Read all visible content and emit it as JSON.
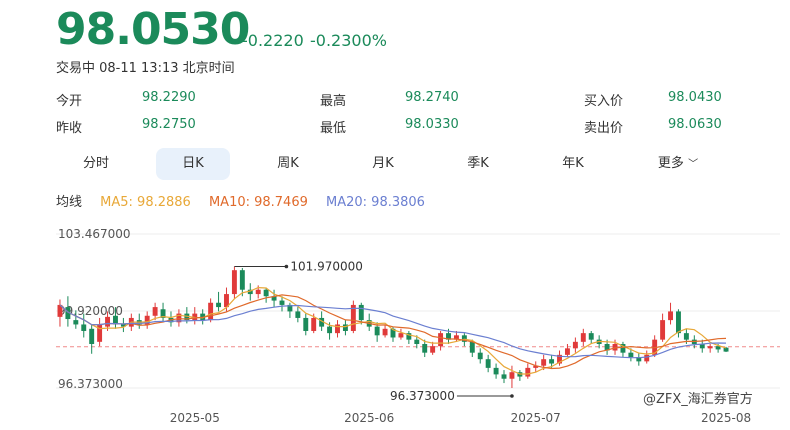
{
  "quote": {
    "price": "98.0530",
    "change": "-0.2220",
    "change_pct": "-0.2300%",
    "status": "交易中 08-11 13:13 北京时间",
    "color_down": "#1b8a5a",
    "color_up": "#e03a3a"
  },
  "stats": [
    {
      "label": "今开",
      "value": "98.2290"
    },
    {
      "label": "最高",
      "value": "98.2740"
    },
    {
      "label": "买入价",
      "value": "98.0430"
    },
    {
      "label": "昨收",
      "value": "98.2750"
    },
    {
      "label": "最低",
      "value": "98.0330"
    },
    {
      "label": "卖出价",
      "value": "98.0630"
    }
  ],
  "tabs": [
    "分时",
    "日K",
    "周K",
    "月K",
    "季K",
    "年K",
    "更多"
  ],
  "active_tab": "日K",
  "ma": {
    "label": "均线",
    "ma5": "MA5: 98.2886",
    "ma10": "MA10: 98.7469",
    "ma20": "MA20: 98.3806",
    "color_ma5": "#e8a838",
    "color_ma10": "#e06a2b",
    "color_ma20": "#6b7fd1"
  },
  "watermark": "@ZFX_海汇券官方",
  "chart_data": {
    "type": "candlestick",
    "y_labels": [
      "103.467000",
      "99.920000",
      "96.373000"
    ],
    "ylim": [
      96.373,
      103.467
    ],
    "x_labels": [
      "2025-05",
      "2025-06",
      "2025-07",
      "2025-08"
    ],
    "x_label_index": [
      17,
      39,
      60,
      84
    ],
    "high_annotation": {
      "index": 22,
      "label": "101.970000",
      "value": 101.97
    },
    "low_annotation": {
      "index": 57,
      "label": "96.373000",
      "value": 96.373
    },
    "reference_price": 98.275,
    "candles": [
      [
        99.65,
        100.2,
        100.45,
        99.2
      ],
      [
        100.1,
        99.55,
        100.6,
        99.2
      ],
      [
        99.5,
        99.3,
        99.95,
        99.1
      ],
      [
        99.3,
        99.0,
        99.8,
        98.7
      ],
      [
        99.1,
        98.4,
        99.3,
        97.95
      ],
      [
        98.5,
        99.3,
        99.6,
        98.3
      ],
      [
        99.2,
        99.65,
        99.9,
        99.0
      ],
      [
        99.7,
        99.3,
        100.1,
        99.1
      ],
      [
        99.3,
        99.2,
        99.6,
        98.95
      ],
      [
        99.2,
        99.6,
        99.8,
        99.0
      ],
      [
        99.5,
        99.3,
        99.8,
        99.1
      ],
      [
        99.3,
        99.7,
        99.9,
        99.1
      ],
      [
        99.7,
        100.1,
        100.3,
        99.5
      ],
      [
        100.0,
        99.6,
        100.3,
        99.4
      ],
      [
        99.6,
        99.4,
        99.9,
        99.2
      ],
      [
        99.4,
        99.8,
        100.0,
        99.2
      ],
      [
        99.8,
        99.5,
        100.1,
        99.35
      ],
      [
        99.5,
        99.8,
        100.1,
        99.3
      ],
      [
        99.8,
        99.5,
        100.0,
        99.3
      ],
      [
        99.5,
        100.3,
        100.5,
        99.4
      ],
      [
        100.3,
        100.1,
        100.8,
        99.9
      ],
      [
        100.1,
        100.7,
        101.0,
        99.9
      ],
      [
        100.7,
        101.8,
        101.97,
        100.5
      ],
      [
        101.8,
        100.9,
        101.9,
        100.6
      ],
      [
        100.9,
        100.7,
        101.2,
        100.4
      ],
      [
        100.7,
        100.9,
        101.1,
        100.5
      ],
      [
        100.9,
        100.6,
        101.0,
        100.3
      ],
      [
        100.6,
        100.4,
        100.9,
        100.1
      ],
      [
        100.4,
        100.2,
        100.6,
        99.9
      ],
      [
        100.2,
        99.9,
        100.3,
        99.6
      ],
      [
        99.9,
        99.6,
        100.1,
        99.4
      ],
      [
        99.6,
        99.0,
        99.8,
        98.8
      ],
      [
        99.0,
        99.6,
        99.8,
        98.9
      ],
      [
        99.6,
        99.2,
        99.9,
        99.0
      ],
      [
        99.2,
        98.9,
        99.4,
        98.6
      ],
      [
        98.9,
        99.3,
        99.5,
        98.7
      ],
      [
        99.3,
        99.0,
        99.5,
        98.8
      ],
      [
        99.0,
        100.2,
        100.4,
        98.9
      ],
      [
        100.2,
        99.5,
        100.3,
        99.3
      ],
      [
        99.5,
        99.2,
        99.8,
        99.0
      ],
      [
        99.2,
        98.8,
        99.4,
        98.5
      ],
      [
        98.8,
        99.1,
        99.3,
        98.7
      ],
      [
        99.1,
        98.7,
        99.2,
        98.5
      ],
      [
        98.7,
        98.9,
        99.1,
        98.6
      ],
      [
        98.9,
        98.6,
        99.0,
        98.4
      ],
      [
        98.6,
        98.4,
        98.8,
        98.2
      ],
      [
        98.4,
        98.0,
        98.6,
        97.8
      ],
      [
        98.0,
        98.3,
        98.5,
        97.9
      ],
      [
        98.3,
        98.9,
        99.0,
        98.1
      ],
      [
        98.9,
        98.6,
        99.1,
        98.4
      ],
      [
        98.6,
        98.8,
        99.0,
        98.5
      ],
      [
        98.8,
        98.5,
        98.9,
        98.3
      ],
      [
        98.5,
        98.0,
        98.6,
        97.8
      ],
      [
        98.0,
        97.7,
        98.2,
        97.5
      ],
      [
        97.7,
        97.3,
        97.9,
        97.1
      ],
      [
        97.3,
        97.0,
        97.5,
        96.8
      ],
      [
        97.0,
        96.8,
        97.2,
        96.6
      ],
      [
        96.8,
        97.1,
        97.4,
        96.373
      ],
      [
        97.1,
        96.9,
        97.2,
        96.7
      ],
      [
        96.9,
        97.3,
        97.5,
        96.8
      ],
      [
        97.3,
        97.4,
        97.6,
        97.1
      ],
      [
        97.4,
        97.7,
        97.9,
        97.2
      ],
      [
        97.7,
        97.5,
        97.9,
        97.3
      ],
      [
        97.5,
        97.9,
        98.1,
        97.4
      ],
      [
        97.9,
        98.2,
        98.4,
        97.8
      ],
      [
        98.2,
        98.5,
        98.7,
        98.0
      ],
      [
        98.5,
        98.9,
        99.1,
        98.3
      ],
      [
        98.9,
        98.6,
        99.0,
        98.4
      ],
      [
        98.6,
        98.4,
        98.8,
        98.2
      ],
      [
        98.4,
        98.1,
        98.6,
        97.9
      ],
      [
        98.1,
        98.4,
        98.6,
        97.9
      ],
      [
        98.4,
        98.0,
        98.5,
        97.8
      ],
      [
        98.0,
        97.8,
        98.2,
        97.6
      ],
      [
        97.8,
        97.6,
        98.0,
        97.4
      ],
      [
        97.6,
        97.9,
        98.1,
        97.5
      ],
      [
        97.9,
        98.6,
        98.8,
        97.8
      ],
      [
        98.6,
        99.5,
        99.8,
        98.5
      ],
      [
        99.5,
        99.9,
        100.3,
        99.3
      ],
      [
        99.9,
        98.9,
        100.0,
        98.7
      ],
      [
        98.9,
        98.6,
        99.1,
        98.4
      ],
      [
        98.6,
        98.4,
        98.8,
        98.2
      ],
      [
        98.4,
        98.2,
        98.6,
        98.0
      ],
      [
        98.2,
        98.3,
        98.4,
        98.0
      ],
      [
        98.3,
        98.15,
        98.4,
        98.0
      ],
      [
        98.23,
        98.05,
        98.27,
        98.03
      ]
    ]
  }
}
